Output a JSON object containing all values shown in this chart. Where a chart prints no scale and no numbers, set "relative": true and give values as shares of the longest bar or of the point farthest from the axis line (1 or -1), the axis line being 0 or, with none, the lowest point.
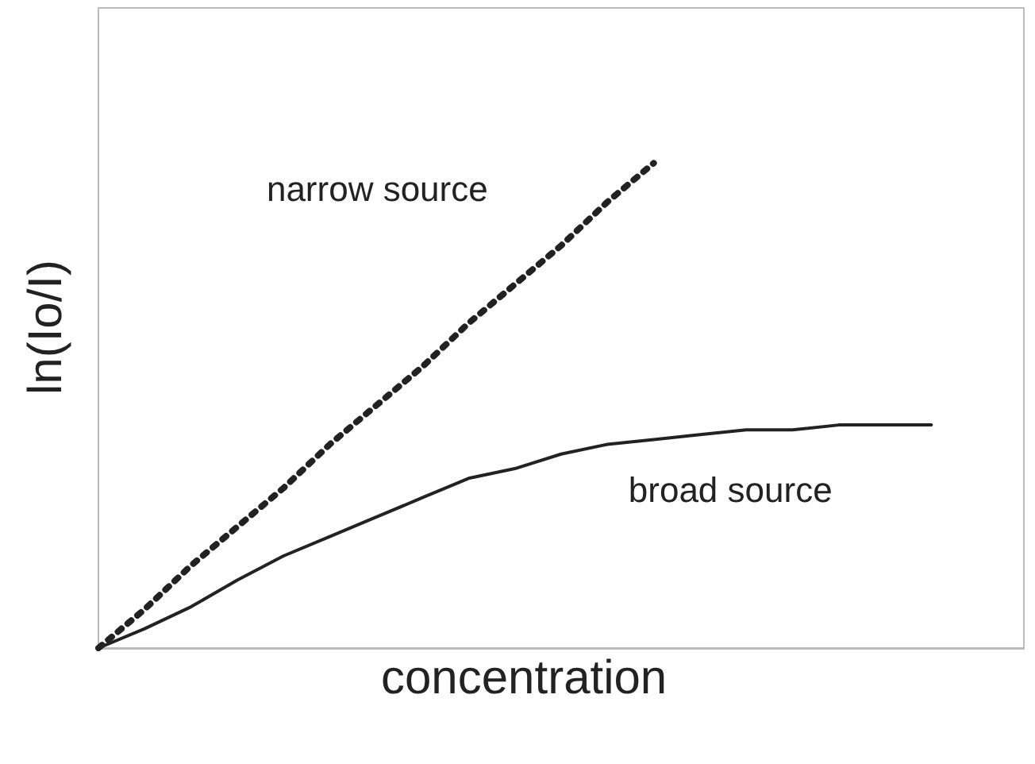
{
  "chart_data": {
    "type": "line",
    "relative": true,
    "xlabel": "concentration",
    "ylabel": "ln(Io/I)",
    "marker": "none",
    "grid": false,
    "legend": false,
    "categories": [
      null,
      null,
      null,
      null,
      null,
      null,
      null,
      null,
      null,
      null,
      null,
      null,
      null,
      null,
      null,
      null,
      null,
      null,
      null,
      null,
      null
    ],
    "series": [
      {
        "name": "narrow source",
        "color": "#222222",
        "line_style": "dotted",
        "values": [
          0,
          0.08,
          0.17,
          0.25,
          0.33,
          0.42,
          0.5,
          0.58,
          0.67,
          0.75,
          0.83,
          0.92,
          1,
          null,
          null,
          null,
          null,
          null,
          null,
          null,
          null
        ]
      },
      {
        "name": "broad source",
        "color": "#222222",
        "line_style": "solid",
        "values": [
          0,
          0.04,
          0.085,
          0.14,
          0.19,
          0.23,
          0.27,
          0.31,
          0.35,
          0.37,
          0.4,
          0.42,
          0.43,
          0.44,
          0.45,
          0.45,
          0.46,
          0.46,
          0.46,
          null,
          null
        ]
      }
    ]
  }
}
